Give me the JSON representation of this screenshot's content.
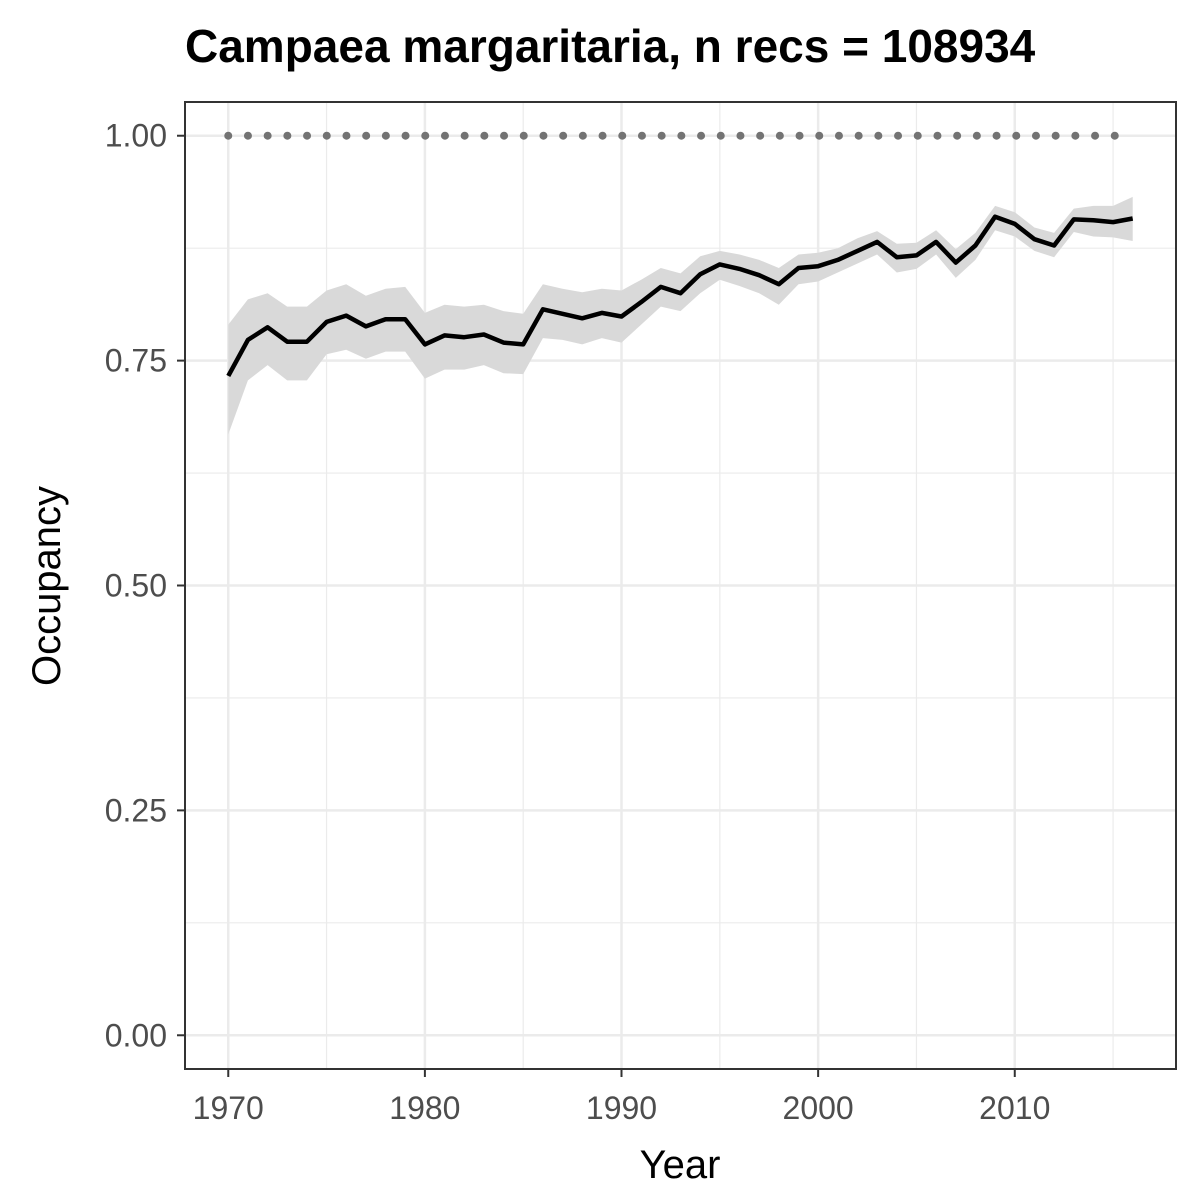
{
  "chart_data": {
    "type": "line",
    "title": "Campaea margaritaria, n recs = 108934",
    "xlabel": "Year",
    "ylabel": "Occupancy",
    "xlim": [
      1967.8,
      2018.2
    ],
    "ylim": [
      -0.0375,
      1.0375
    ],
    "x_ticks": [
      1970,
      1980,
      1990,
      2000,
      2010
    ],
    "x_tick_labels": [
      "1970",
      "1980",
      "1990",
      "2000",
      "2010"
    ],
    "y_ticks": [
      0.0,
      0.25,
      0.5,
      0.75,
      1.0
    ],
    "y_tick_labels": [
      "0.00",
      "0.25",
      "0.50",
      "0.75",
      "1.00"
    ],
    "grid": true,
    "legend": "none",
    "colors": {
      "line": "#000000",
      "ribbon": "#d9d9d9",
      "reference": "#737373",
      "grid": "#ebebeb",
      "panel_border": "#333333"
    },
    "reference_line": {
      "style": "dotted",
      "value": 1.0,
      "x_start": 1970,
      "x_end": 2016
    },
    "series": [
      {
        "x": [
          1970,
          1971,
          1972,
          1973,
          1974,
          1975,
          1976,
          1977,
          1978,
          1979,
          1980,
          1981,
          1982,
          1983,
          1984,
          1985,
          1986,
          1987,
          1988,
          1989,
          1990,
          1991,
          1992,
          1993,
          1994,
          1995,
          1996,
          1997,
          1998,
          1999,
          2000,
          2001,
          2002,
          2003,
          2004,
          2005,
          2006,
          2007,
          2008,
          2009,
          2010,
          2011,
          2012,
          2013,
          2014,
          2015,
          2016
        ],
        "y": [
          0.733,
          0.773,
          0.787,
          0.771,
          0.771,
          0.793,
          0.8,
          0.788,
          0.796,
          0.796,
          0.768,
          0.778,
          0.776,
          0.779,
          0.77,
          0.768,
          0.807,
          0.802,
          0.797,
          0.803,
          0.799,
          0.815,
          0.832,
          0.825,
          0.846,
          0.857,
          0.852,
          0.845,
          0.835,
          0.853,
          0.855,
          0.862,
          0.872,
          0.882,
          0.865,
          0.867,
          0.882,
          0.859,
          0.878,
          0.91,
          0.902,
          0.885,
          0.878,
          0.907,
          0.906,
          0.904,
          0.908
        ],
        "lower": [
          0.668,
          0.728,
          0.745,
          0.728,
          0.728,
          0.757,
          0.762,
          0.752,
          0.76,
          0.76,
          0.73,
          0.74,
          0.74,
          0.745,
          0.736,
          0.735,
          0.775,
          0.773,
          0.768,
          0.775,
          0.77,
          0.79,
          0.81,
          0.805,
          0.825,
          0.84,
          0.833,
          0.825,
          0.812,
          0.835,
          0.838,
          0.848,
          0.858,
          0.868,
          0.848,
          0.852,
          0.868,
          0.842,
          0.862,
          0.895,
          0.888,
          0.872,
          0.865,
          0.893,
          0.888,
          0.887,
          0.883
        ],
        "upper": [
          0.79,
          0.818,
          0.825,
          0.81,
          0.81,
          0.828,
          0.835,
          0.822,
          0.83,
          0.832,
          0.803,
          0.812,
          0.81,
          0.812,
          0.805,
          0.802,
          0.835,
          0.83,
          0.826,
          0.83,
          0.828,
          0.84,
          0.853,
          0.847,
          0.866,
          0.872,
          0.868,
          0.862,
          0.853,
          0.868,
          0.87,
          0.875,
          0.886,
          0.894,
          0.88,
          0.881,
          0.895,
          0.874,
          0.892,
          0.922,
          0.915,
          0.898,
          0.892,
          0.919,
          0.922,
          0.922,
          0.932
        ]
      }
    ]
  }
}
